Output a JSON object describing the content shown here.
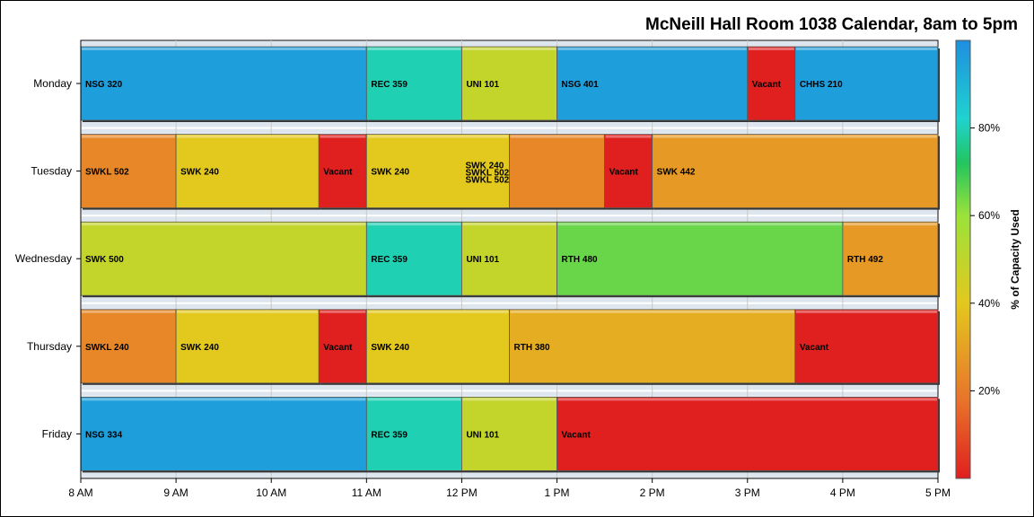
{
  "chart_data": {
    "type": "bar",
    "subtype": "horizontal-timeline",
    "title": "McNeill Hall Room 1038 Calendar, 8am to 5pm",
    "xlabel": "",
    "ylabel": "",
    "x_ticks": [
      "8 AM",
      "9 AM",
      "10 AM",
      "11 AM",
      "12 PM",
      "1 PM",
      "2 PM",
      "3 PM",
      "4 PM",
      "5 PM"
    ],
    "xlim": [
      8,
      17
    ],
    "grid": true,
    "categories": [
      "Monday",
      "Tuesday",
      "Wednesday",
      "Thursday",
      "Friday"
    ],
    "colorbar": {
      "label": "% of Capacity Used",
      "ticks": [
        "20%",
        "40%",
        "60%",
        "80%"
      ],
      "placement": "right",
      "colors": [
        "#e01f1f",
        "#e8742a",
        "#e3c81e",
        "#9be23a",
        "#22c55e",
        "#1fd3cf",
        "#1e8ee0"
      ]
    },
    "series": [
      {
        "day": "Monday",
        "blocks": [
          {
            "label": "NSG 320",
            "start": 8,
            "end": 11,
            "capacity": 95
          },
          {
            "label": "REC 359",
            "start": 11,
            "end": 12,
            "capacity": 78
          },
          {
            "label": "UNI 101",
            "start": 12,
            "end": 13,
            "capacity": 50
          },
          {
            "label": "NSG 401",
            "start": 13,
            "end": 15,
            "capacity": 95
          },
          {
            "label": "Vacant",
            "start": 15,
            "end": 15.5,
            "capacity": 0
          },
          {
            "label": "CHHS 210",
            "start": 15.5,
            "end": 17,
            "capacity": 95
          }
        ]
      },
      {
        "day": "Tuesday",
        "blocks": [
          {
            "label": "SWKL 502",
            "start": 8,
            "end": 9,
            "capacity": 25
          },
          {
            "label": "SWK 240",
            "start": 9,
            "end": 10.5,
            "capacity": 42
          },
          {
            "label": "Vacant",
            "start": 10.5,
            "end": 11,
            "capacity": 0
          },
          {
            "label": "SWK 240",
            "start": 11,
            "end": 12.5,
            "capacity": 42
          },
          {
            "label": "SWK 240",
            "start": 12.5,
            "end": 12.5,
            "capacity": 42,
            "point": true
          },
          {
            "label": "SWKL 502",
            "start": 12.5,
            "end": 12.5,
            "capacity": 25,
            "point": true
          },
          {
            "label": "SWKL 502",
            "start": 12.5,
            "end": 13.5,
            "capacity": 25
          },
          {
            "label": "Vacant",
            "start": 13.5,
            "end": 14,
            "capacity": 0
          },
          {
            "label": "SWK 442",
            "start": 14,
            "end": 17,
            "capacity": 30
          }
        ]
      },
      {
        "day": "Wednesday",
        "blocks": [
          {
            "label": "SWK 500",
            "start": 8,
            "end": 11,
            "capacity": 50
          },
          {
            "label": "REC 359",
            "start": 11,
            "end": 12,
            "capacity": 78
          },
          {
            "label": "UNI 101",
            "start": 12,
            "end": 13,
            "capacity": 50
          },
          {
            "label": "RTH 480",
            "start": 13,
            "end": 16,
            "capacity": 65
          },
          {
            "label": "RTH 492",
            "start": 16,
            "end": 17,
            "capacity": 30
          }
        ]
      },
      {
        "day": "Thursday",
        "blocks": [
          {
            "label": "SWKL 240",
            "start": 8,
            "end": 9,
            "capacity": 25
          },
          {
            "label": "SWK 240",
            "start": 9,
            "end": 10.5,
            "capacity": 42
          },
          {
            "label": "Vacant",
            "start": 10.5,
            "end": 11,
            "capacity": 0
          },
          {
            "label": "SWK 240",
            "start": 11,
            "end": 12.5,
            "capacity": 42
          },
          {
            "label": "RTH 380",
            "start": 12.5,
            "end": 15.5,
            "capacity": 35
          },
          {
            "label": "Vacant",
            "start": 15.5,
            "end": 17,
            "capacity": 0
          }
        ]
      },
      {
        "day": "Friday",
        "blocks": [
          {
            "label": "NSG 334",
            "start": 8,
            "end": 11,
            "capacity": 95
          },
          {
            "label": "REC 359",
            "start": 11,
            "end": 12,
            "capacity": 78
          },
          {
            "label": "UNI 101",
            "start": 12,
            "end": 13,
            "capacity": 50
          },
          {
            "label": "Vacant",
            "start": 13,
            "end": 17,
            "capacity": 0
          }
        ]
      }
    ]
  }
}
